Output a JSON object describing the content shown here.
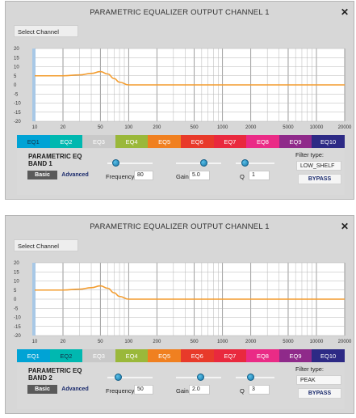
{
  "colors": {
    "curve": "#f39c2e",
    "grid_major": "#8a8a8a",
    "grid_minor": "#b5b5b5",
    "scale_bar": "#a8c8e6",
    "eq_tabs": [
      "#00a3d5",
      "#00b8b0",
      "#c9c9c9",
      "#9ab83a",
      "#f08020",
      "#e83a2a",
      "#e9293e",
      "#ea2b86",
      "#8f2a8a",
      "#2d2a85"
    ]
  },
  "icons": {
    "close": "close-icon"
  },
  "windows": [
    {
      "title": "PARAMETRIC EQUALIZER OUTPUT CHANNEL 1",
      "close_glyph": "✕",
      "select_channel": "Select Channel",
      "chart_data": {
        "type": "line",
        "xscale": "log",
        "xlim": [
          10,
          20000
        ],
        "ylim": [
          -20,
          20
        ],
        "yticks": [
          20,
          15,
          10,
          5,
          0,
          -5,
          -10,
          -15,
          -20
        ],
        "xticks": [
          10,
          20,
          50,
          100,
          200,
          500,
          1000,
          2000,
          5000,
          10000,
          20000
        ],
        "series": [
          {
            "x": [
              10,
              20,
              30,
              40,
              50,
              60,
              70,
              80,
              100,
              150,
              200,
              500,
              1000,
              5000,
              20000
            ],
            "y": [
              5,
              5,
              5.5,
              6.3,
              7.3,
              6,
              3.5,
              1.5,
              0,
              0,
              0,
              0,
              0,
              0,
              0
            ]
          }
        ],
        "grid": true
      },
      "tabs": [
        "EQ1",
        "EQ2",
        "EQ3",
        "EQ4",
        "EQ5",
        "EQ6",
        "EQ7",
        "EQ8",
        "EQ9",
        "EQ10"
      ],
      "active_tab": 0,
      "band_title_line1": "PARAMETRIC EQ",
      "band_title_line2": "BAND 1",
      "mode_basic": "Basic",
      "mode_advanced": "Advanced",
      "frequency_label": "Frequency",
      "frequency_value": "80",
      "gain_label": "Gain",
      "gain_value": "5.0",
      "q_label": "Q",
      "q_value": "1",
      "frequency_slider": 0.2,
      "gain_slider": 0.625,
      "q_slider": 0.25,
      "filter_type_label": "Filter type:",
      "filter_type_value": "LOW_SHELF",
      "bypass_label": "BYPASS"
    },
    {
      "title": "PARAMETRIC EQUALIZER OUTPUT CHANNEL 1",
      "close_glyph": "✕",
      "select_channel": "Select Channel",
      "chart_data": {
        "type": "line",
        "xscale": "log",
        "xlim": [
          10,
          20000
        ],
        "ylim": [
          -20,
          20
        ],
        "yticks": [
          20,
          15,
          10,
          5,
          0,
          -5,
          -10,
          -15,
          -20
        ],
        "xticks": [
          10,
          20,
          50,
          100,
          200,
          500,
          1000,
          2000,
          5000,
          10000,
          20000
        ],
        "series": [
          {
            "x": [
              10,
              20,
              30,
              40,
              50,
              60,
              70,
              80,
              100,
              150,
              200,
              500,
              1000,
              5000,
              20000
            ],
            "y": [
              5,
              5,
              5.5,
              6.3,
              7.3,
              6,
              3.5,
              1.5,
              0,
              0,
              0,
              0,
              0,
              0,
              0
            ]
          }
        ],
        "grid": true
      },
      "tabs": [
        "EQ1",
        "EQ2",
        "EQ3",
        "EQ4",
        "EQ5",
        "EQ6",
        "EQ7",
        "EQ8",
        "EQ9",
        "EQ10"
      ],
      "active_tab": 1,
      "band_title_line1": "PARAMETRIC EQ",
      "band_title_line2": "BAND 2",
      "mode_basic": "Basic",
      "mode_advanced": "Advanced",
      "frequency_label": "Frequency",
      "frequency_value": "50",
      "gain_label": "Gain",
      "gain_value": "2.0",
      "q_label": "Q",
      "q_value": "3",
      "frequency_slider": 0.25,
      "gain_slider": 0.55,
      "q_slider": 0.4,
      "filter_type_label": "Filter type:",
      "filter_type_value": "PEAK",
      "bypass_label": "BYPASS"
    }
  ]
}
